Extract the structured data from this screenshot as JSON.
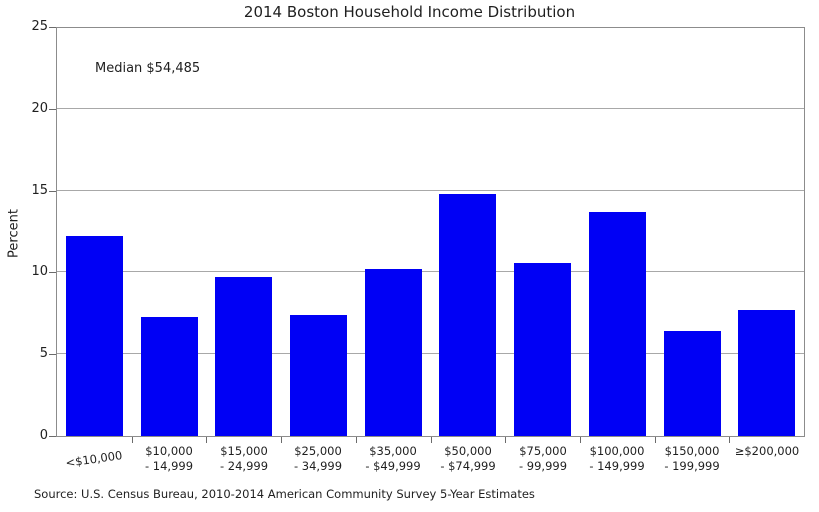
{
  "chart_data": {
    "type": "bar",
    "title": "2014 Boston Household Income Distribution",
    "ylabel": "Percent",
    "xlabel": "",
    "ylim": [
      0,
      25
    ],
    "yticks": [
      0,
      5,
      10,
      15,
      20,
      25
    ],
    "grid": "horizontal gridlines at 5, 10, 15, 20",
    "legend_position": "none",
    "annotation": "Median $54,485",
    "categories": [
      "<$10,000",
      "$10,000\n- 14,999",
      "$15,000\n- 24,999",
      "$25,000\n- 34,999",
      "$35,000\n- $49,999",
      "$50,000\n- $74,999",
      "$75,000\n- 99,999",
      "$100,000\n- 149,999",
      "$150,000\n- 199,999",
      "≥$200,000"
    ],
    "values": [
      12.2,
      7.3,
      9.7,
      7.4,
      10.2,
      14.8,
      10.6,
      13.7,
      6.4,
      7.7
    ],
    "colors": {
      "bar_fill": "#0000f5",
      "gridline": "#a8a8a8",
      "spine": "#8c8c8c",
      "text": "#1f1f1f"
    },
    "layout_hints": {
      "first_xlabel_rotation_deg": -8
    }
  },
  "source": "Source: U.S. Census Bureau, 2010-2014 American Community Survey 5-Year Estimates"
}
